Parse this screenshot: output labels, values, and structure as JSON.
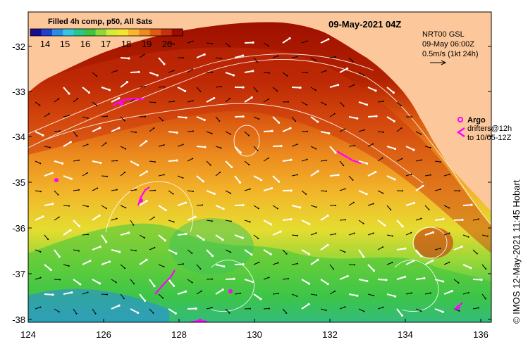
{
  "map": {
    "title": "09-May-2021 04Z",
    "product": "Filled 4h comp, p50, All Sats",
    "credit": "© IMOS 12-May-2021 11:45 Hobart",
    "colorbar": {
      "ticks": [
        "14",
        "15",
        "16",
        "17",
        "18",
        "19",
        "20"
      ],
      "colors": [
        "#1a0a8c",
        "#1f3fcf",
        "#2a8de0",
        "#33c8e0",
        "#29c78a",
        "#3cc43c",
        "#8fd83a",
        "#d9ea35",
        "#f6e52e",
        "#f6b72a",
        "#f08a1e",
        "#e05a12",
        "#c9300a",
        "#9c0c00"
      ]
    },
    "currents": {
      "source": "NRT00 GSL",
      "time": "09-May 06:00Z",
      "scale": "0.5m/s (1kt 24h)"
    },
    "legend": {
      "argo": "Argo",
      "drifters": "drifters@12h",
      "drifters_to": "to 10/05-12Z"
    },
    "x_axis": {
      "ticks": [
        "124",
        "126",
        "128",
        "130",
        "132",
        "134",
        "136"
      ]
    },
    "y_axis": {
      "ticks": [
        "-32",
        "-33",
        "-34",
        "-35",
        "-36",
        "-37",
        "-38"
      ]
    },
    "colors": {
      "land": "#fcc79b",
      "argo": "#ff00ff",
      "drifter": "#ff00ff"
    }
  }
}
